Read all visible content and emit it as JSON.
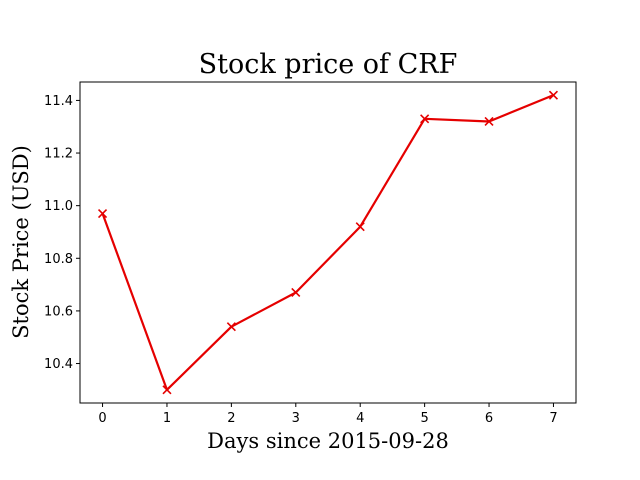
{
  "chart_data": {
    "type": "line",
    "title": "Stock price of CRF",
    "xlabel": "Days since 2015-09-28",
    "ylabel": "Stock Price (USD)",
    "x": [
      0,
      1,
      2,
      3,
      4,
      5,
      6,
      7
    ],
    "series": [
      {
        "values": [
          10.97,
          10.3,
          10.54,
          10.67,
          10.92,
          11.33,
          11.32,
          11.42
        ],
        "color": "#e50000",
        "marker": "x"
      }
    ],
    "xlim": [
      -0.35,
      7.35
    ],
    "ylim": [
      10.25,
      11.47
    ],
    "xticks": [
      0,
      1,
      2,
      3,
      4,
      5,
      6,
      7
    ],
    "xtick_labels": [
      "0",
      "1",
      "2",
      "3",
      "4",
      "5",
      "6",
      "7"
    ],
    "yticks": [
      10.4,
      10.6,
      10.8,
      11.0,
      11.2,
      11.4
    ],
    "ytick_labels": [
      "10.4",
      "10.6",
      "10.8",
      "11.0",
      "11.2",
      "11.4"
    ],
    "grid": false,
    "legend": false
  }
}
